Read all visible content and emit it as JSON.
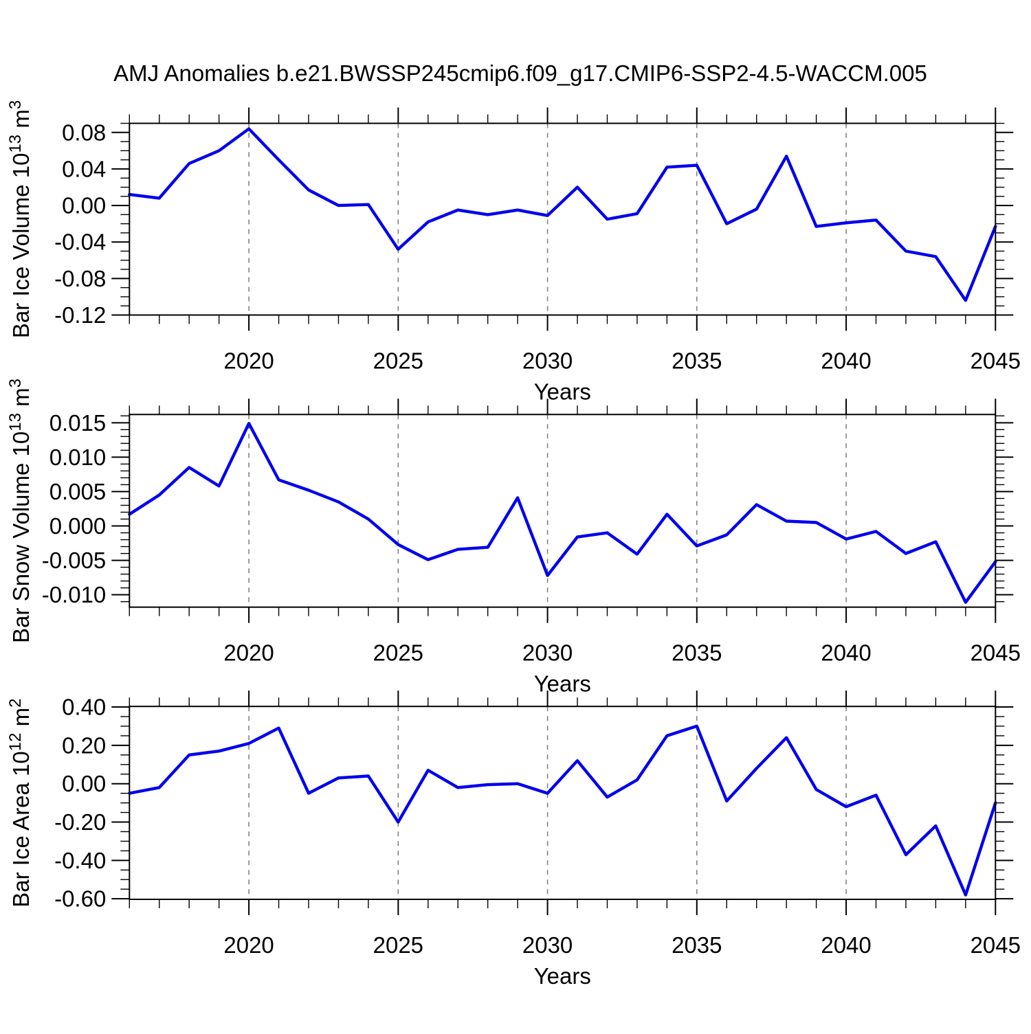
{
  "title": "AMJ Anomalies b.e21.BWSSP245cmip6.f09_g17.CMIP6-SSP2-4.5-WACCM.005",
  "xlabel": "Years",
  "colors": {
    "line": "#0000ee",
    "grid": "#7a7a7a",
    "axis": "#000000",
    "background": "#ffffff"
  },
  "x_axis": {
    "xlim": [
      2016,
      2045
    ],
    "major_ticks": [
      2020,
      2025,
      2030,
      2035,
      2040,
      2045
    ],
    "major_labels": [
      "2020",
      "2025",
      "2030",
      "2035",
      "2040",
      "2045"
    ],
    "grid_years": [
      2020,
      2025,
      2030,
      2035,
      2040
    ],
    "minor_step": 1
  },
  "years": [
    2016,
    2017,
    2018,
    2019,
    2020,
    2021,
    2022,
    2023,
    2024,
    2025,
    2026,
    2027,
    2028,
    2029,
    2030,
    2031,
    2032,
    2033,
    2034,
    2035,
    2036,
    2037,
    2038,
    2039,
    2040,
    2041,
    2042,
    2043,
    2044,
    2045
  ],
  "chart_data": [
    {
      "type": "line",
      "name": "bar-ice-volume",
      "ylabel": "Bar Ice Volume 10¹³ m³",
      "ylabel_segments": [
        {
          "t": "Bar Ice Volume 10"
        },
        {
          "t": "13",
          "sup": true
        },
        {
          "t": " m"
        },
        {
          "t": "3",
          "sup": true
        }
      ],
      "ylim": [
        -0.12,
        0.09
      ],
      "yticks": [
        {
          "v": 0.08,
          "label": "0.08"
        },
        {
          "v": 0.04,
          "label": "0.04"
        },
        {
          "v": 0.0,
          "label": "0.00"
        },
        {
          "v": -0.04,
          "label": "-0.04"
        },
        {
          "v": -0.08,
          "label": "-0.08"
        },
        {
          "v": -0.12,
          "label": "-0.12"
        }
      ],
      "y_minor_step": 0.01,
      "values": [
        0.012,
        0.008,
        0.046,
        0.06,
        0.084,
        0.05,
        0.017,
        0.0,
        0.001,
        -0.048,
        -0.018,
        -0.005,
        -0.01,
        -0.005,
        -0.011,
        0.02,
        -0.015,
        -0.009,
        0.042,
        0.044,
        -0.02,
        -0.004,
        0.054,
        -0.023,
        -0.019,
        -0.016,
        -0.05,
        -0.056,
        -0.104,
        -0.023
      ]
    },
    {
      "type": "line",
      "name": "bar-snow-volume",
      "ylabel": "Bar Snow Volume 10¹³ m³",
      "ylabel_segments": [
        {
          "t": "Bar Snow Volume 10"
        },
        {
          "t": "13",
          "sup": true
        },
        {
          "t": " m"
        },
        {
          "t": "3",
          "sup": true
        }
      ],
      "ylim": [
        -0.0118,
        0.0162
      ],
      "yticks": [
        {
          "v": 0.015,
          "label": "0.015"
        },
        {
          "v": 0.01,
          "label": "0.010"
        },
        {
          "v": 0.005,
          "label": "0.005"
        },
        {
          "v": 0.0,
          "label": "0.000"
        },
        {
          "v": -0.005,
          "label": "-0.005"
        },
        {
          "v": -0.01,
          "label": "-0.010"
        }
      ],
      "y_minor_step": 0.001,
      "values": [
        0.0017,
        0.0045,
        0.0085,
        0.0058,
        0.0149,
        0.0067,
        0.0052,
        0.0035,
        0.001,
        -0.0027,
        -0.0049,
        -0.0034,
        -0.0031,
        0.0041,
        -0.0072,
        -0.0016,
        -0.001,
        -0.0041,
        0.0017,
        -0.0029,
        -0.0013,
        0.0031,
        0.0007,
        0.0005,
        -0.0019,
        -0.0008,
        -0.004,
        -0.0023,
        -0.0111,
        -0.0052
      ]
    },
    {
      "type": "line",
      "name": "bar-ice-area",
      "ylabel": "Bar Ice Area 10¹² m²",
      "ylabel_segments": [
        {
          "t": "Bar Ice Area 10"
        },
        {
          "t": "12",
          "sup": true
        },
        {
          "t": " m"
        },
        {
          "t": "2",
          "sup": true
        }
      ],
      "ylim": [
        -0.603,
        0.403
      ],
      "yticks": [
        {
          "v": 0.4,
          "label": "0.40"
        },
        {
          "v": 0.2,
          "label": "0.20"
        },
        {
          "v": 0.0,
          "label": "0.00"
        },
        {
          "v": -0.2,
          "label": "-0.20"
        },
        {
          "v": -0.4,
          "label": "-0.40"
        },
        {
          "v": -0.6,
          "label": "-0.60"
        }
      ],
      "y_minor_step": 0.05,
      "values": [
        -0.05,
        -0.02,
        0.15,
        0.17,
        0.21,
        0.29,
        -0.05,
        0.03,
        0.04,
        -0.2,
        0.07,
        -0.02,
        -0.005,
        0.0,
        -0.05,
        0.12,
        -0.07,
        0.02,
        0.25,
        0.3,
        -0.09,
        0.08,
        0.24,
        -0.03,
        -0.12,
        -0.06,
        -0.37,
        -0.22,
        -0.58,
        -0.1
      ]
    }
  ]
}
